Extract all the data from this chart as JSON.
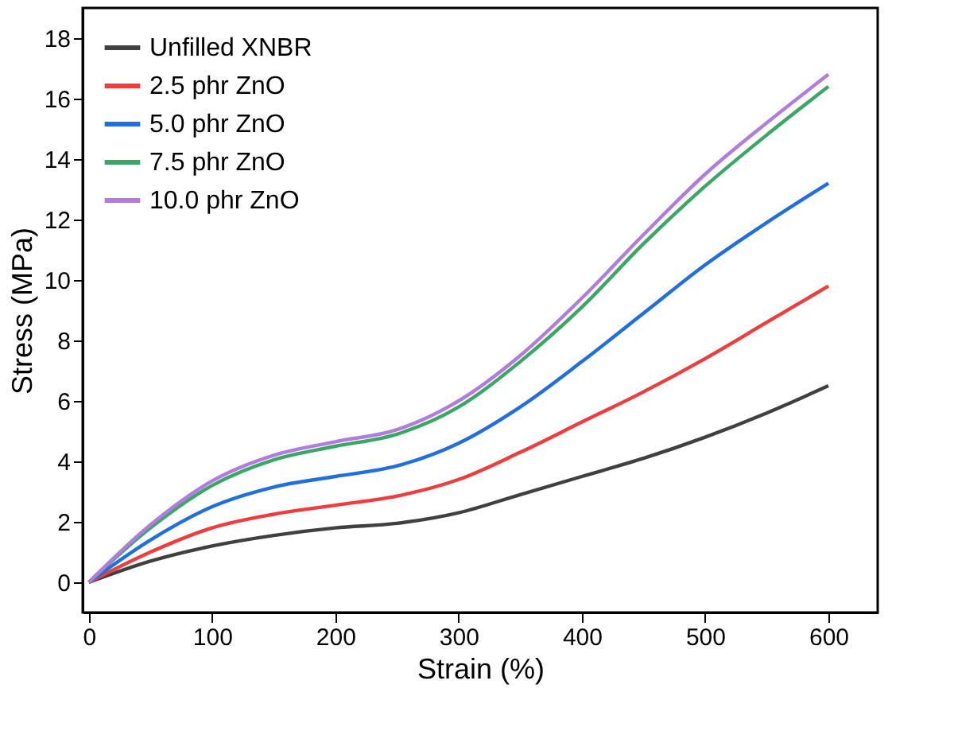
{
  "chart_data": {
    "type": "line",
    "xlabel": "Strain (%)",
    "ylabel": "Stress (MPa)",
    "x": [
      0,
      50,
      100,
      150,
      200,
      250,
      300,
      350,
      400,
      450,
      500,
      550,
      600
    ],
    "series": [
      {
        "name": "Unfilled XNBR",
        "color": "#404040",
        "values": [
          0,
          0.7,
          1.2,
          1.55,
          1.8,
          1.95,
          2.3,
          2.9,
          3.5,
          4.1,
          4.8,
          5.6,
          6.5
        ]
      },
      {
        "name": "2.5 phr ZnO",
        "color": "#f03c3c",
        "values": [
          0,
          1.0,
          1.8,
          2.25,
          2.55,
          2.85,
          3.4,
          4.3,
          5.3,
          6.3,
          7.4,
          8.6,
          9.8
        ]
      },
      {
        "name": "5.0 phr ZnO",
        "color": "#1f6fe0",
        "values": [
          0,
          1.4,
          2.5,
          3.15,
          3.5,
          3.85,
          4.6,
          5.8,
          7.3,
          8.9,
          10.5,
          11.9,
          13.2
        ]
      },
      {
        "name": "7.5 phr ZnO",
        "color": "#3aa865",
        "values": [
          0,
          1.8,
          3.2,
          4.05,
          4.5,
          4.9,
          5.8,
          7.3,
          9.1,
          11.2,
          13.1,
          14.8,
          16.4
        ]
      },
      {
        "name": "10.0 phr ZnO",
        "color": "#b07ce0",
        "values": [
          0,
          1.9,
          3.35,
          4.2,
          4.65,
          5.05,
          6.0,
          7.5,
          9.4,
          11.5,
          13.5,
          15.2,
          16.8
        ]
      }
    ],
    "xlim": [
      -5,
      640
    ],
    "ylim": [
      -1,
      19
    ],
    "xticks": [
      0,
      100,
      200,
      300,
      400,
      500,
      600
    ],
    "yticks": [
      0,
      2,
      4,
      6,
      8,
      10,
      12,
      14,
      16,
      18
    ],
    "grid": false,
    "legend": "top left",
    "line_style": "solid",
    "marker": "none"
  }
}
